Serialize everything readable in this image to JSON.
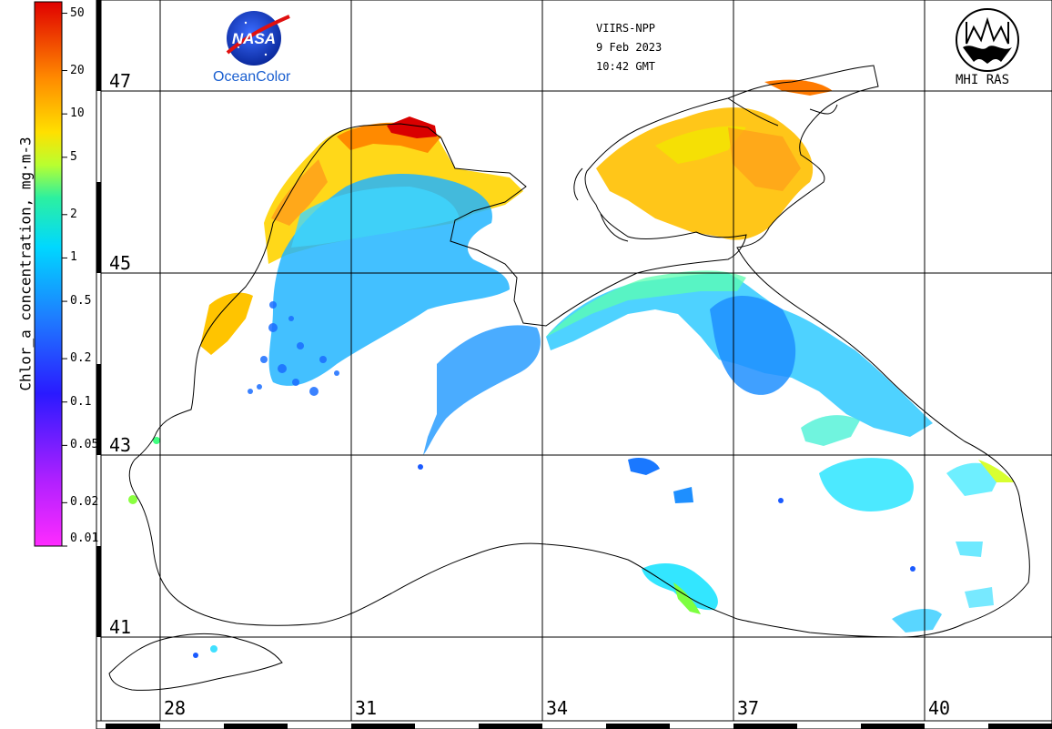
{
  "header": {
    "sensor": "VIIRS-NPP",
    "date": "9 Feb 2023",
    "time": "10:42 GMT"
  },
  "logos": {
    "nasa_wordmark": "NASA",
    "oceancolor": "OceanColor",
    "institute": "MHI RAS"
  },
  "colorbar": {
    "title": "Chlor_a concentration, mg·m-3",
    "ticks": [
      {
        "label": "50",
        "value": 50
      },
      {
        "label": "20",
        "value": 20
      },
      {
        "label": "10",
        "value": 10
      },
      {
        "label": "5",
        "value": 5
      },
      {
        "label": "2",
        "value": 2
      },
      {
        "label": "1",
        "value": 1
      },
      {
        "label": "0.5",
        "value": 0.5
      },
      {
        "label": "0.2",
        "value": 0.2
      },
      {
        "label": "0.1",
        "value": 0.1
      },
      {
        "label": "0.05",
        "value": 0.05
      },
      {
        "label": "0.02",
        "value": 0.02
      },
      {
        "label": "0.01",
        "value": 0.01
      }
    ],
    "scale": "log",
    "range": [
      0.01,
      60
    ],
    "colors": [
      "#ff2bff",
      "#8a1cff",
      "#1a1aff",
      "#1e90ff",
      "#00e6ff",
      "#33ff99",
      "#d9ff00",
      "#ffd000",
      "#ff6a00",
      "#e60000"
    ]
  },
  "map": {
    "latitudes": [
      "47",
      "45",
      "43",
      "41"
    ],
    "longitudes": [
      "28",
      "31",
      "34",
      "37",
      "40"
    ],
    "region": "Black Sea",
    "grid": true
  }
}
